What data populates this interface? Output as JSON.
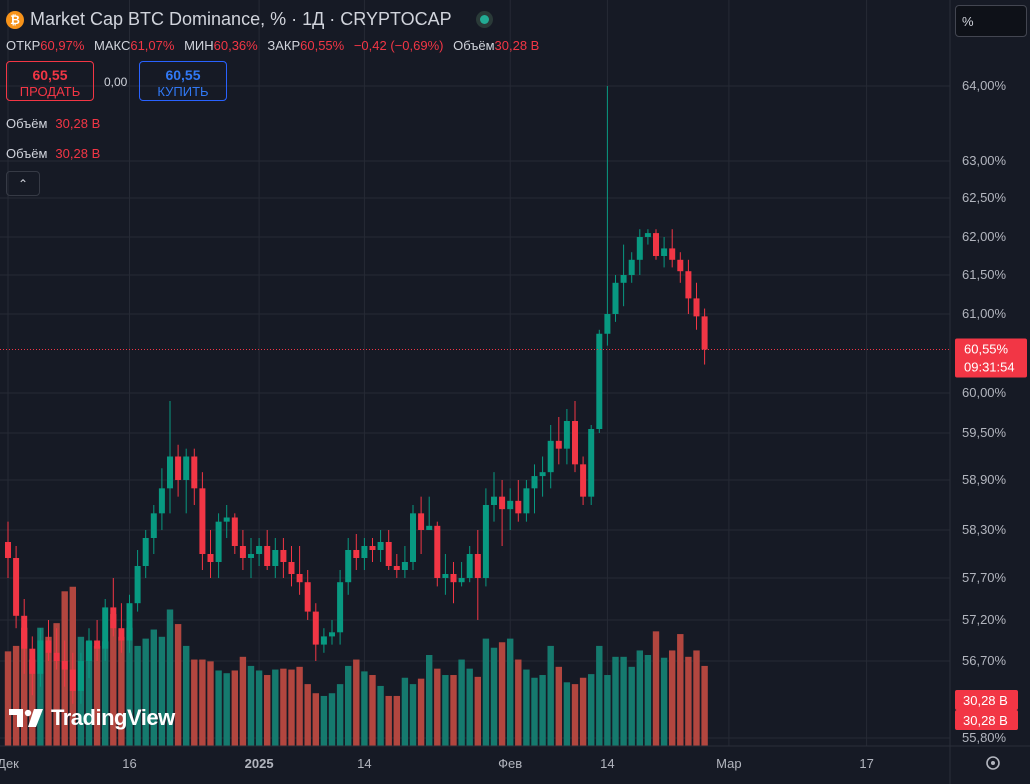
{
  "header": {
    "symbol_title": "Market Cap BTC Dominance, % · 1Д · CRYPTOCAP",
    "coin_glyph": "₿"
  },
  "ohlc": {
    "open_label": "ОТКР",
    "open": "60,97%",
    "high_label": "МАКС",
    "high": "61,07%",
    "low_label": "МИН",
    "low": "60,36%",
    "close_label": "ЗАКР",
    "close": "60,55%",
    "change": "−0,42 (−0,69%)",
    "volume_label": "Объём",
    "volume": "30,28 B"
  },
  "trade": {
    "sell_price": "60,55",
    "sell_label": "ПРОДАТЬ",
    "spread": "0,00",
    "buy_price": "60,55",
    "buy_label": "КУПИТЬ"
  },
  "indicators": [
    {
      "label": "Объём",
      "value": "30,28 B"
    },
    {
      "label": "Объём",
      "value": "30,28 B"
    }
  ],
  "collapse_glyph": "⌃",
  "unit_selector": "%",
  "branding": {
    "logo": "TradingView"
  },
  "colors": {
    "up": "#089981",
    "down": "#f23645",
    "vol_up": "#157a6e",
    "vol_down": "#b2463f",
    "bg": "#161a25",
    "grid": "#262a35"
  },
  "chart_data": {
    "type": "candlestick",
    "y_axis": {
      "ticks": [
        {
          "value": 64.0,
          "label": "64,00%"
        },
        {
          "value": 63.0,
          "label": "63,00%"
        },
        {
          "value": 62.5,
          "label": "62,50%"
        },
        {
          "value": 62.0,
          "label": "62,00%"
        },
        {
          "value": 61.5,
          "label": "61,50%"
        },
        {
          "value": 61.0,
          "label": "61,00%"
        },
        {
          "value": 60.0,
          "label": "60,00%"
        },
        {
          "value": 59.5,
          "label": "59,50%"
        },
        {
          "value": 58.9,
          "label": "58,90%"
        },
        {
          "value": 58.3,
          "label": "58,30%"
        },
        {
          "value": 57.7,
          "label": "57,70%"
        },
        {
          "value": 57.2,
          "label": "57,20%"
        },
        {
          "value": 56.7,
          "label": "56,70%"
        },
        {
          "value": 55.8,
          "label": "55,80%"
        }
      ]
    },
    "x_axis": {
      "ticks": [
        {
          "index": 0,
          "label": "Дек"
        },
        {
          "index": 15,
          "label": "16"
        },
        {
          "index": 31,
          "label": "2025"
        },
        {
          "index": 44,
          "label": "14"
        },
        {
          "index": 62,
          "label": "Фев"
        },
        {
          "index": 74,
          "label": "14"
        },
        {
          "index": 89,
          "label": "Мар"
        },
        {
          "index": 106,
          "label": "17"
        }
      ]
    },
    "last_price": {
      "value": 60.55,
      "label": "60,55%",
      "countdown": "09:31:54"
    },
    "volume_badges": [
      "30,28 B",
      "30,28 B"
    ],
    "candles": [
      {
        "o": 58.15,
        "h": 58.4,
        "l": 57.7,
        "c": 57.95,
        "v": 10.4
      },
      {
        "o": 57.95,
        "h": 58.1,
        "l": 57.1,
        "c": 57.25,
        "v": 11.0
      },
      {
        "o": 57.25,
        "h": 57.45,
        "l": 56.55,
        "c": 56.85,
        "v": 13.0
      },
      {
        "o": 56.85,
        "h": 57.0,
        "l": 56.3,
        "c": 56.55,
        "v": 9.5
      },
      {
        "o": 56.55,
        "h": 57.1,
        "l": 56.4,
        "c": 56.95,
        "v": 13.0
      },
      {
        "o": 56.95,
        "h": 57.2,
        "l": 56.7,
        "c": 56.8,
        "v": 12.0
      },
      {
        "o": 56.8,
        "h": 57.1,
        "l": 56.6,
        "c": 56.7,
        "v": 13.5
      },
      {
        "o": 56.7,
        "h": 56.95,
        "l": 56.4,
        "c": 56.6,
        "v": 17.0
      },
      {
        "o": 56.6,
        "h": 56.8,
        "l": 56.2,
        "c": 56.35,
        "v": 17.5
      },
      {
        "o": 56.35,
        "h": 56.8,
        "l": 56.2,
        "c": 56.7,
        "v": 12.0
      },
      {
        "o": 56.7,
        "h": 57.1,
        "l": 56.5,
        "c": 56.95,
        "v": 11.5
      },
      {
        "o": 56.95,
        "h": 57.2,
        "l": 56.7,
        "c": 56.85,
        "v": 11.0
      },
      {
        "o": 56.85,
        "h": 57.45,
        "l": 56.7,
        "c": 57.35,
        "v": 11.5
      },
      {
        "o": 57.35,
        "h": 57.7,
        "l": 57.0,
        "c": 57.1,
        "v": 14.5
      },
      {
        "o": 57.1,
        "h": 57.4,
        "l": 56.8,
        "c": 56.95,
        "v": 12.0
      },
      {
        "o": 56.95,
        "h": 57.5,
        "l": 56.8,
        "c": 57.4,
        "v": 13.0
      },
      {
        "o": 57.4,
        "h": 58.05,
        "l": 57.3,
        "c": 57.85,
        "v": 11.0
      },
      {
        "o": 57.85,
        "h": 58.3,
        "l": 57.7,
        "c": 58.2,
        "v": 11.8
      },
      {
        "o": 58.2,
        "h": 58.6,
        "l": 58.0,
        "c": 58.5,
        "v": 12.8
      },
      {
        "o": 58.5,
        "h": 59.05,
        "l": 58.3,
        "c": 58.8,
        "v": 12.0
      },
      {
        "o": 58.8,
        "h": 59.9,
        "l": 58.5,
        "c": 59.2,
        "v": 15.0
      },
      {
        "o": 59.2,
        "h": 59.35,
        "l": 58.7,
        "c": 58.9,
        "v": 13.4
      },
      {
        "o": 58.9,
        "h": 59.3,
        "l": 58.5,
        "c": 59.2,
        "v": 11.0
      },
      {
        "o": 59.2,
        "h": 59.3,
        "l": 58.6,
        "c": 58.8,
        "v": 9.5
      },
      {
        "o": 58.8,
        "h": 59.0,
        "l": 57.8,
        "c": 58.0,
        "v": 9.5
      },
      {
        "o": 58.0,
        "h": 58.3,
        "l": 57.7,
        "c": 57.9,
        "v": 9.3
      },
      {
        "o": 57.9,
        "h": 58.5,
        "l": 57.7,
        "c": 58.4,
        "v": 8.3
      },
      {
        "o": 58.4,
        "h": 58.6,
        "l": 58.2,
        "c": 58.45,
        "v": 8.0
      },
      {
        "o": 58.45,
        "h": 58.5,
        "l": 58.0,
        "c": 58.1,
        "v": 8.3
      },
      {
        "o": 58.1,
        "h": 58.3,
        "l": 57.8,
        "c": 57.95,
        "v": 9.8
      },
      {
        "o": 57.95,
        "h": 58.2,
        "l": 57.7,
        "c": 58.0,
        "v": 8.8
      },
      {
        "o": 58.0,
        "h": 58.2,
        "l": 57.85,
        "c": 58.1,
        "v": 8.3
      },
      {
        "o": 58.1,
        "h": 58.3,
        "l": 57.8,
        "c": 57.85,
        "v": 7.8
      },
      {
        "o": 57.85,
        "h": 58.2,
        "l": 57.7,
        "c": 58.05,
        "v": 8.4
      },
      {
        "o": 58.05,
        "h": 58.2,
        "l": 57.7,
        "c": 57.9,
        "v": 8.5
      },
      {
        "o": 57.9,
        "h": 58.1,
        "l": 57.6,
        "c": 57.75,
        "v": 8.4
      },
      {
        "o": 57.75,
        "h": 58.1,
        "l": 57.5,
        "c": 57.65,
        "v": 8.7
      },
      {
        "o": 57.65,
        "h": 57.8,
        "l": 57.2,
        "c": 57.3,
        "v": 6.8
      },
      {
        "o": 57.3,
        "h": 57.4,
        "l": 56.7,
        "c": 56.9,
        "v": 5.8
      },
      {
        "o": 56.9,
        "h": 57.1,
        "l": 56.8,
        "c": 57.0,
        "v": 5.5
      },
      {
        "o": 57.0,
        "h": 57.2,
        "l": 56.9,
        "c": 57.05,
        "v": 5.8
      },
      {
        "o": 57.05,
        "h": 57.8,
        "l": 56.9,
        "c": 57.65,
        "v": 6.8
      },
      {
        "o": 57.65,
        "h": 58.2,
        "l": 57.5,
        "c": 58.05,
        "v": 8.8
      },
      {
        "o": 58.05,
        "h": 58.25,
        "l": 57.8,
        "c": 57.95,
        "v": 9.5
      },
      {
        "o": 57.95,
        "h": 58.2,
        "l": 57.8,
        "c": 58.1,
        "v": 8.2
      },
      {
        "o": 58.1,
        "h": 58.2,
        "l": 57.9,
        "c": 58.05,
        "v": 7.8
      },
      {
        "o": 58.05,
        "h": 58.3,
        "l": 57.9,
        "c": 58.15,
        "v": 6.6
      },
      {
        "o": 58.15,
        "h": 58.3,
        "l": 57.8,
        "c": 57.85,
        "v": 5.5
      },
      {
        "o": 57.85,
        "h": 58.0,
        "l": 57.7,
        "c": 57.8,
        "v": 5.5
      },
      {
        "o": 57.8,
        "h": 58.1,
        "l": 57.7,
        "c": 57.9,
        "v": 7.5
      },
      {
        "o": 57.9,
        "h": 58.6,
        "l": 57.8,
        "c": 58.5,
        "v": 6.8
      },
      {
        "o": 58.5,
        "h": 58.7,
        "l": 58.0,
        "c": 58.3,
        "v": 7.4
      },
      {
        "o": 58.3,
        "h": 58.7,
        "l": 58.3,
        "c": 58.35,
        "v": 10.0
      },
      {
        "o": 58.35,
        "h": 58.4,
        "l": 57.6,
        "c": 57.7,
        "v": 8.5
      },
      {
        "o": 57.7,
        "h": 58.0,
        "l": 57.5,
        "c": 57.75,
        "v": 7.8
      },
      {
        "o": 57.75,
        "h": 57.9,
        "l": 57.4,
        "c": 57.65,
        "v": 7.8
      },
      {
        "o": 57.65,
        "h": 57.9,
        "l": 57.6,
        "c": 57.7,
        "v": 9.5
      },
      {
        "o": 57.7,
        "h": 58.1,
        "l": 57.65,
        "c": 58.0,
        "v": 8.5
      },
      {
        "o": 58.0,
        "h": 58.3,
        "l": 57.2,
        "c": 57.7,
        "v": 7.6
      },
      {
        "o": 57.7,
        "h": 58.8,
        "l": 57.6,
        "c": 58.6,
        "v": 11.8
      },
      {
        "o": 58.6,
        "h": 59.0,
        "l": 58.4,
        "c": 58.7,
        "v": 10.8
      },
      {
        "o": 58.7,
        "h": 58.9,
        "l": 58.1,
        "c": 58.55,
        "v": 11.4
      },
      {
        "o": 58.55,
        "h": 58.8,
        "l": 58.3,
        "c": 58.65,
        "v": 11.8
      },
      {
        "o": 58.65,
        "h": 58.9,
        "l": 58.4,
        "c": 58.5,
        "v": 9.5
      },
      {
        "o": 58.5,
        "h": 58.9,
        "l": 58.4,
        "c": 58.8,
        "v": 8.4
      },
      {
        "o": 58.8,
        "h": 59.1,
        "l": 58.5,
        "c": 58.95,
        "v": 7.5
      },
      {
        "o": 58.95,
        "h": 59.2,
        "l": 58.7,
        "c": 59.0,
        "v": 7.8
      },
      {
        "o": 59.0,
        "h": 59.6,
        "l": 58.8,
        "c": 59.4,
        "v": 11.0
      },
      {
        "o": 59.4,
        "h": 59.7,
        "l": 59.1,
        "c": 59.3,
        "v": 8.7
      },
      {
        "o": 59.3,
        "h": 59.8,
        "l": 59.1,
        "c": 59.65,
        "v": 7.0
      },
      {
        "o": 59.65,
        "h": 59.9,
        "l": 59.0,
        "c": 59.1,
        "v": 6.8
      },
      {
        "o": 59.1,
        "h": 59.2,
        "l": 58.6,
        "c": 58.7,
        "v": 7.5
      },
      {
        "o": 58.7,
        "h": 59.6,
        "l": 58.6,
        "c": 59.55,
        "v": 7.9
      },
      {
        "o": 59.55,
        "h": 60.8,
        "l": 59.5,
        "c": 60.75,
        "v": 11.0
      },
      {
        "o": 60.75,
        "h": 64.0,
        "l": 60.6,
        "c": 61.0,
        "v": 7.8
      },
      {
        "o": 61.0,
        "h": 61.5,
        "l": 60.9,
        "c": 61.4,
        "v": 9.8
      },
      {
        "o": 61.4,
        "h": 61.9,
        "l": 61.1,
        "c": 61.5,
        "v": 9.8
      },
      {
        "o": 61.5,
        "h": 61.8,
        "l": 61.4,
        "c": 61.7,
        "v": 8.7
      },
      {
        "o": 61.7,
        "h": 62.1,
        "l": 61.5,
        "c": 62.0,
        "v": 10.5
      },
      {
        "o": 62.0,
        "h": 62.1,
        "l": 61.9,
        "c": 62.05,
        "v": 10.0
      },
      {
        "o": 62.05,
        "h": 62.1,
        "l": 61.7,
        "c": 61.75,
        "v": 12.6
      },
      {
        "o": 61.75,
        "h": 62.0,
        "l": 61.6,
        "c": 61.85,
        "v": 9.7
      },
      {
        "o": 61.85,
        "h": 62.1,
        "l": 61.6,
        "c": 61.7,
        "v": 10.5
      },
      {
        "o": 61.7,
        "h": 61.8,
        "l": 61.4,
        "c": 61.55,
        "v": 12.3
      },
      {
        "o": 61.55,
        "h": 61.7,
        "l": 61.0,
        "c": 61.2,
        "v": 9.8
      },
      {
        "o": 61.2,
        "h": 61.4,
        "l": 60.8,
        "c": 60.97,
        "v": 10.5
      },
      {
        "o": 60.97,
        "h": 61.07,
        "l": 60.36,
        "c": 60.55,
        "v": 8.8
      }
    ]
  }
}
